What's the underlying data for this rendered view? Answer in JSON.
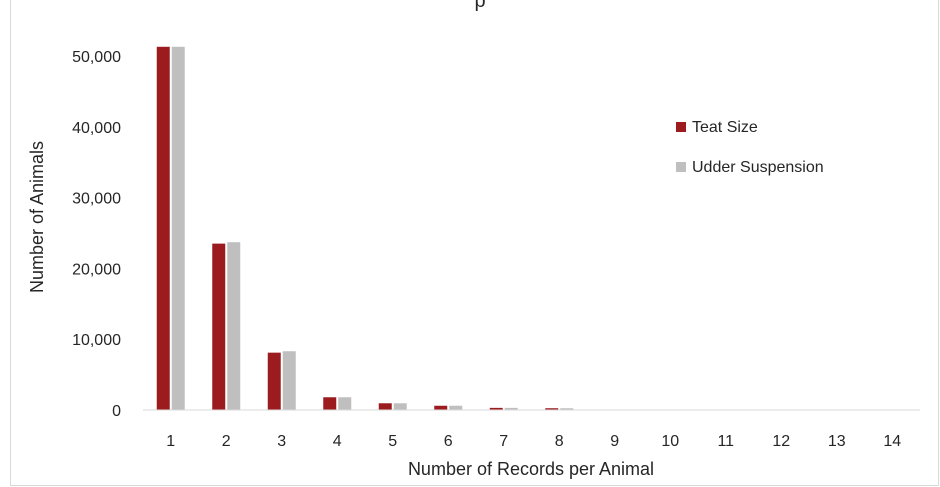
{
  "chart_data": {
    "type": "bar",
    "title": "p",
    "xlabel": "Number of Records per Animal",
    "ylabel": "Number of Animals",
    "categories": [
      "1",
      "2",
      "3",
      "4",
      "5",
      "6",
      "7",
      "8",
      "9",
      "10",
      "11",
      "12",
      "13",
      "14"
    ],
    "series": [
      {
        "name": "Teat Size",
        "color": "#9b1b1f",
        "values": [
          51300,
          23500,
          8100,
          1800,
          950,
          600,
          300,
          250,
          40,
          20,
          10,
          5,
          3,
          2
        ]
      },
      {
        "name": "Udder Suspension",
        "color": "#bfbfbf",
        "values": [
          51300,
          23700,
          8300,
          1800,
          950,
          600,
          300,
          250,
          40,
          20,
          10,
          5,
          3,
          2
        ]
      }
    ],
    "ylim": [
      0,
      50000
    ],
    "yticks": [
      0,
      10000,
      20000,
      30000,
      40000,
      50000
    ],
    "ytick_labels": [
      "0",
      "10,000",
      "20,000",
      "30,000",
      "40,000",
      "50,000"
    ],
    "grid": false,
    "legend_position": "right"
  }
}
